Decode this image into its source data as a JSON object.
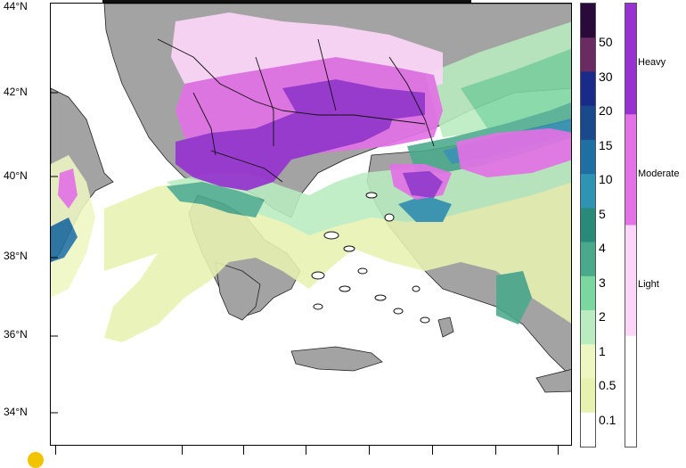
{
  "map": {
    "lat_labels": [
      "44°N",
      "42°N",
      "40°N",
      "38°N",
      "36°N",
      "34°N"
    ]
  },
  "precip_colorbar": {
    "labels": [
      "50",
      "30",
      "20",
      "15",
      "10",
      "5",
      "4",
      "3",
      "2",
      "1",
      "0.5",
      "0.1"
    ],
    "colors": [
      "#2a0a3a",
      "#6a2a62",
      "#1a2a88",
      "#1a4a8c",
      "#1f6fa2",
      "#2f93b3",
      "#2a8a7a",
      "#4aa98a",
      "#7cd6a0",
      "#b9ecc0",
      "#eef6c2",
      "#e8f2b0",
      "#ffffff"
    ]
  },
  "intensity_colorbar": {
    "labels": [
      "Heavy",
      "Moderate",
      "Light"
    ],
    "colors": [
      "#9633d0",
      "#e272e6",
      "#fcd6f8",
      "#ffffff"
    ]
  },
  "colors": {
    "land": "#a3a3a3",
    "sea": "#ffffff"
  }
}
